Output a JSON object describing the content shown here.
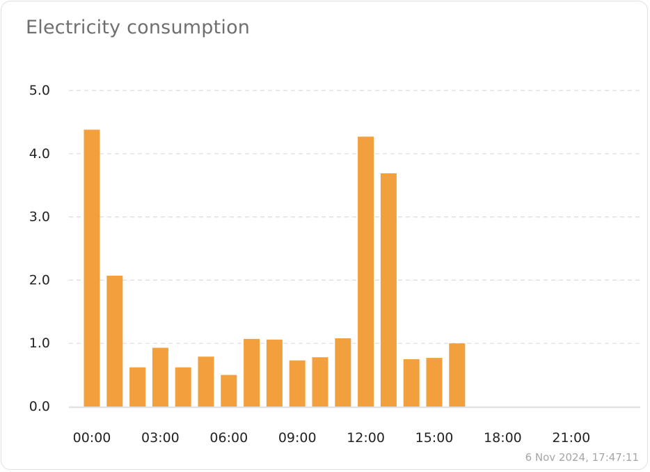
{
  "card": {
    "title": "Electricity consumption",
    "timestamp": "6 Nov 2024, 17:47:11"
  },
  "chart_data": {
    "type": "bar",
    "categories": [
      "00:00",
      "01:00",
      "02:00",
      "03:00",
      "04:00",
      "05:00",
      "06:00",
      "07:00",
      "08:00",
      "09:00",
      "10:00",
      "11:00",
      "12:00",
      "13:00",
      "14:00",
      "15:00",
      "16:00",
      "17:00",
      "18:00",
      "19:00",
      "20:00",
      "21:00",
      "22:00",
      "23:00"
    ],
    "values": [
      4.38,
      2.07,
      0.62,
      0.93,
      0.62,
      0.79,
      0.5,
      1.07,
      1.06,
      0.73,
      0.78,
      1.08,
      4.27,
      3.69,
      0.75,
      0.77,
      1.0,
      null,
      null,
      null,
      null,
      null,
      null,
      null
    ],
    "x_tick_labels": [
      "00:00",
      "03:00",
      "06:00",
      "09:00",
      "12:00",
      "15:00",
      "18:00",
      "21:00"
    ],
    "y_tick_labels": [
      "0.0",
      "1.0",
      "2.0",
      "3.0",
      "4.0",
      "5.0"
    ],
    "ylim": [
      0,
      5
    ],
    "title": "Electricity consumption",
    "xlabel": "",
    "ylabel": "",
    "grid": true,
    "bar_color": "#f2a03d"
  }
}
